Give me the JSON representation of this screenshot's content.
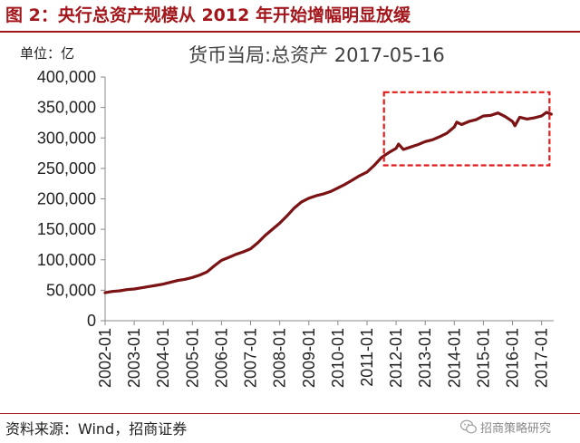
{
  "figure": {
    "title": "图 2：央行总资产规模从 2012 年开始增幅明显放缓",
    "unit_label": "单位：亿",
    "source": "资料来源：Wind，招商证券",
    "watermark": "招商策略研究",
    "accent_color": "#a3171c"
  },
  "chart_data": {
    "type": "line",
    "title": "货币当局:总资产 2017-05-16",
    "xlabel": "",
    "ylabel": "",
    "ylim": [
      0,
      400000
    ],
    "yticks": [
      0,
      50000,
      100000,
      150000,
      200000,
      250000,
      300000,
      350000,
      400000
    ],
    "ytick_labels": [
      "0",
      "50,000",
      "100,000",
      "150,000",
      "200,000",
      "250,000",
      "300,000",
      "350,000",
      "400,000"
    ],
    "xticks": [
      "2002-01",
      "2003-01",
      "2004-01",
      "2005-01",
      "2006-01",
      "2007-01",
      "2008-01",
      "2009-01",
      "2010-01",
      "2011-01",
      "2012-01",
      "2013-01",
      "2014-01",
      "2015-01",
      "2016-01",
      "2017-01"
    ],
    "grid": false,
    "legend": "none",
    "line_color": "#7b1214",
    "highlight": {
      "x_from": "2011-08",
      "x_to": "2017-05",
      "y_from": 255000,
      "y_to": 375000,
      "style": "dashed",
      "color": "#e31c1c"
    },
    "series": [
      {
        "x": [
          "2002-01",
          "2002-04",
          "2002-07",
          "2002-10",
          "2003-01",
          "2003-04",
          "2003-07",
          "2003-10",
          "2004-01",
          "2004-04",
          "2004-07",
          "2004-10",
          "2005-01",
          "2005-04",
          "2005-07",
          "2005-10",
          "2006-01",
          "2006-04",
          "2006-07",
          "2006-10",
          "2007-01",
          "2007-04",
          "2007-07",
          "2007-10",
          "2008-01",
          "2008-04",
          "2008-07",
          "2008-10",
          "2009-01",
          "2009-04",
          "2009-07",
          "2009-10",
          "2010-01",
          "2010-04",
          "2010-07",
          "2010-10",
          "2011-01",
          "2011-04",
          "2011-07",
          "2011-10",
          "2012-01",
          "2012-02",
          "2012-04",
          "2012-07",
          "2012-10",
          "2013-01",
          "2013-04",
          "2013-07",
          "2013-10",
          "2014-01",
          "2014-02",
          "2014-04",
          "2014-07",
          "2014-10",
          "2015-01",
          "2015-04",
          "2015-07",
          "2015-10",
          "2016-01",
          "2016-02",
          "2016-04",
          "2016-07",
          "2016-10",
          "2017-01",
          "2017-03",
          "2017-05"
        ],
        "values": [
          46000,
          48000,
          49000,
          51000,
          52000,
          54000,
          56000,
          58000,
          60000,
          63000,
          66000,
          68000,
          71000,
          75000,
          80000,
          90000,
          99000,
          104000,
          109000,
          113000,
          118000,
          128000,
          140000,
          150000,
          160000,
          172000,
          185000,
          195000,
          201000,
          205000,
          208000,
          212000,
          218000,
          224000,
          231000,
          238000,
          244000,
          255000,
          268000,
          276000,
          283000,
          290000,
          281000,
          285000,
          289000,
          294000,
          297000,
          302000,
          308000,
          318000,
          326000,
          322000,
          327000,
          330000,
          336000,
          337000,
          341000,
          335000,
          327000,
          320000,
          334000,
          331000,
          333000,
          336000,
          342000,
          339000
        ]
      }
    ]
  }
}
